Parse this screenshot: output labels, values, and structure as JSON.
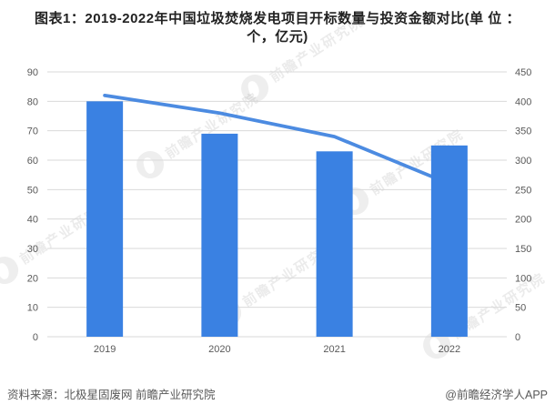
{
  "title": {
    "line1": "图表1：2019-2022年中国垃圾焚烧发电项目开标数量与投资金额对比(单 位 ：",
    "line2": "个，亿元)"
  },
  "footer": {
    "source": "资料来源：北极星固废网 前瞻产业研究院",
    "credit": "@前瞻经济学人APP"
  },
  "watermark": {
    "text": "前瞻产业研究院"
  },
  "chart_data": {
    "type": "bar",
    "subtype": "bar-line-combo",
    "title": "图表1：2019-2022年中国垃圾焚烧发电项目开标数量与投资金额对比(单 位 ：个，亿元)",
    "categories": [
      "2019",
      "2020",
      "2021",
      "2022"
    ],
    "series": [
      {
        "name": "开标数量(个)",
        "type": "bar",
        "axis": "left",
        "values": [
          80,
          69,
          63,
          65
        ]
      },
      {
        "name": "投资金额(亿元)",
        "type": "line",
        "axis": "right",
        "values": [
          410,
          380,
          340,
          260
        ]
      }
    ],
    "axes": {
      "left": {
        "min": 0,
        "max": 90,
        "step": 10
      },
      "right": {
        "min": 0,
        "max": 450,
        "step": 50
      }
    },
    "grid": true,
    "legend": false,
    "colors": {
      "bar": "#3a81e2",
      "line": "#4285df",
      "grid": "#d9d9d9",
      "tick_text": "#595959"
    }
  }
}
